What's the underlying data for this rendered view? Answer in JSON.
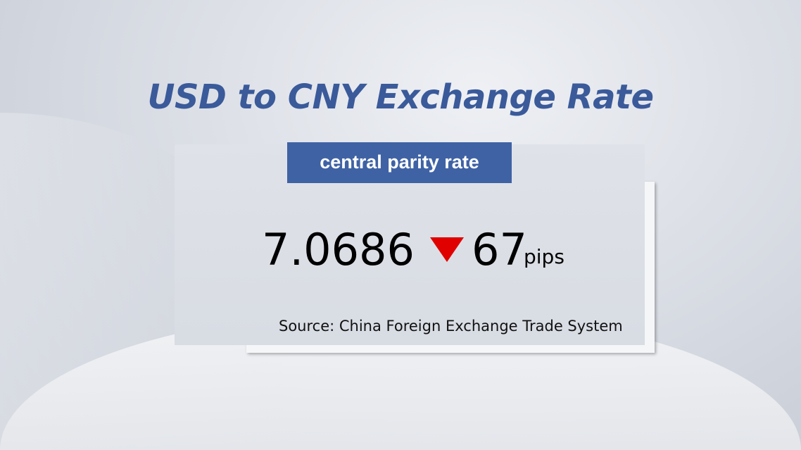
{
  "title": "USD to CNY Exchange Rate",
  "badge": "central parity rate",
  "rate": "7.0686",
  "change": {
    "direction": "down",
    "value": "67",
    "unit": "pips",
    "color": "#e00000",
    "icon": "down-triangle-icon"
  },
  "source": "Source: China Foreign Exchange Trade System",
  "colors": {
    "title": "#3a5a9a",
    "badge": "#3f62a4"
  }
}
